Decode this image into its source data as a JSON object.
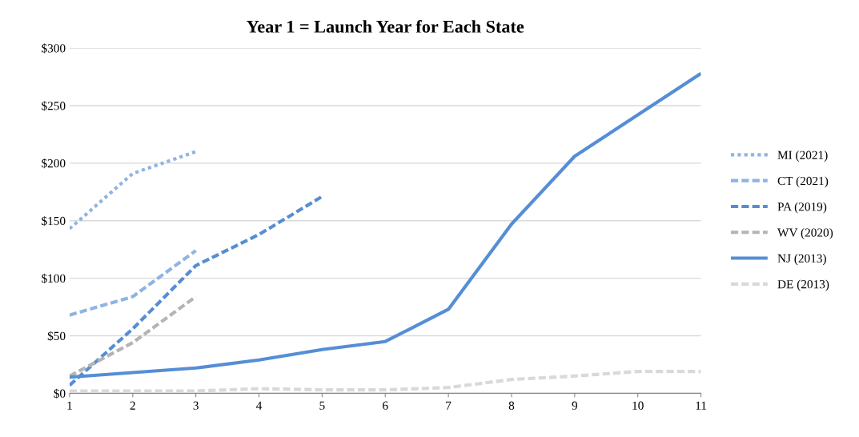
{
  "chart_data": {
    "type": "line",
    "title": "Year 1 = Launch Year for Each State",
    "x": [
      1,
      2,
      3,
      4,
      5,
      6,
      7,
      8,
      9,
      10,
      11
    ],
    "xlim": [
      1,
      11
    ],
    "xticks": [
      1,
      2,
      3,
      4,
      5,
      6,
      7,
      8,
      9,
      10,
      11
    ],
    "ylim": [
      0,
      300
    ],
    "yticks": [
      {
        "value": 0,
        "label": "$0"
      },
      {
        "value": 50,
        "label": "$50"
      },
      {
        "value": 100,
        "label": "$100"
      },
      {
        "value": 150,
        "label": "$150"
      },
      {
        "value": 200,
        "label": "$200"
      },
      {
        "value": 250,
        "label": "$250"
      },
      {
        "value": 300,
        "label": "$300"
      }
    ],
    "grid": "y",
    "legend": "right",
    "marker": "none",
    "series": [
      {
        "name": "MI (2021)",
        "color": "#8fb4e3",
        "line_style": "dotted",
        "x": [
          1,
          2,
          3
        ],
        "values": [
          143,
          191,
          210
        ]
      },
      {
        "name": "CT (2021)",
        "color": "#8fb4e3",
        "line_style": "dashed",
        "x": [
          1,
          2,
          3
        ],
        "values": [
          68,
          84,
          124
        ]
      },
      {
        "name": "PA (2019)",
        "color": "#558ed5",
        "line_style": "dashed",
        "x": [
          1,
          2,
          3,
          4,
          5
        ],
        "values": [
          7,
          56,
          111,
          138,
          171
        ]
      },
      {
        "name": "WV (2020)",
        "color": "#b4b4b4",
        "line_style": "dashed",
        "x": [
          1,
          2,
          3
        ],
        "values": [
          15,
          44,
          84
        ]
      },
      {
        "name": "NJ (2013)",
        "color": "#558ed5",
        "line_style": "solid",
        "values": [
          14,
          18,
          22,
          29,
          38,
          45,
          73,
          147,
          206,
          242,
          278
        ]
      },
      {
        "name": "DE (2013)",
        "color": "#d9d9d9",
        "line_style": "dashed",
        "values": [
          2,
          2,
          2,
          4,
          3,
          3,
          5,
          12,
          15,
          19,
          19
        ]
      }
    ]
  }
}
